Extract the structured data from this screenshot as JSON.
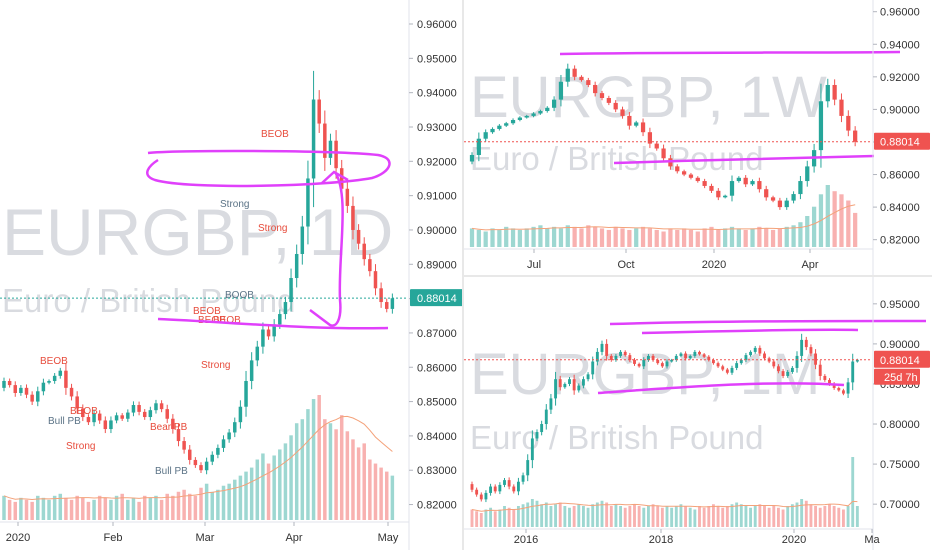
{
  "chart_data": [
    {
      "type": "candlestick",
      "watermark": {
        "ticker": "EURGBP, 1D",
        "description": "Euro / British Pound"
      },
      "x_tick_labels": [
        "2020",
        "Feb",
        "Mar",
        "Apr",
        "May"
      ],
      "y_tick_labels": [
        "0.82000",
        "0.83000",
        "0.84000",
        "0.85000",
        "0.86000",
        "0.87000",
        "0.88000",
        "0.89000",
        "0.90000",
        "0.91000",
        "0.92000",
        "0.93000",
        "0.94000",
        "0.95000",
        "0.96000"
      ],
      "ylim": [
        0.8155,
        0.9635
      ],
      "last_price": "0.88014",
      "colors": {
        "up": "#26a69a",
        "down": "#ef5350",
        "drawing": "#e040fb",
        "volume_ma": "#f4a27a"
      },
      "annotations": [
        "BEOB",
        "Bull PB",
        "BEOB",
        "Strong",
        "Bear PB",
        "Bull PB",
        "BEOB",
        "BEOB",
        "BEOB",
        "Strong",
        "BOOB",
        "Strong",
        "BEOB"
      ],
      "candles": {
        "o": [
          0.854,
          0.856,
          0.8548,
          0.8525,
          0.854,
          0.852,
          0.85,
          0.853,
          0.8555,
          0.856,
          0.8575,
          0.859,
          0.854,
          0.8515,
          0.848,
          0.8455,
          0.844,
          0.8465,
          0.8445,
          0.842,
          0.8445,
          0.846,
          0.845,
          0.8468,
          0.849,
          0.847,
          0.8455,
          0.8475,
          0.8495,
          0.8478,
          0.845,
          0.842,
          0.8385,
          0.836,
          0.833,
          0.8315,
          0.83,
          0.8325,
          0.8345,
          0.8365,
          0.839,
          0.841,
          0.844,
          0.8485,
          0.856,
          0.862,
          0.866,
          0.871,
          0.869,
          0.8725,
          0.8755,
          0.879,
          0.886,
          0.893,
          0.901,
          0.915,
          0.938,
          0.931,
          0.921,
          0.926,
          0.918,
          0.912,
          0.907,
          0.9,
          0.896,
          0.8915,
          0.888,
          0.883,
          0.879,
          0.877
        ],
        "c": [
          0.856,
          0.8548,
          0.8525,
          0.854,
          0.852,
          0.85,
          0.853,
          0.8555,
          0.856,
          0.8575,
          0.859,
          0.854,
          0.8515,
          0.848,
          0.8455,
          0.844,
          0.8465,
          0.8445,
          0.842,
          0.8445,
          0.846,
          0.845,
          0.8468,
          0.849,
          0.847,
          0.8455,
          0.8475,
          0.8495,
          0.8478,
          0.845,
          0.842,
          0.8385,
          0.836,
          0.833,
          0.8315,
          0.83,
          0.8325,
          0.8345,
          0.8365,
          0.839,
          0.841,
          0.844,
          0.8485,
          0.856,
          0.862,
          0.866,
          0.871,
          0.869,
          0.8725,
          0.8755,
          0.879,
          0.886,
          0.893,
          0.901,
          0.915,
          0.938,
          0.931,
          0.921,
          0.926,
          0.918,
          0.912,
          0.907,
          0.9,
          0.896,
          0.8915,
          0.888,
          0.883,
          0.879,
          0.877,
          0.8801
        ],
        "v": [
          12,
          10,
          9,
          11,
          10,
          9,
          12,
          11,
          10,
          12,
          13,
          11,
          10,
          12,
          11,
          9,
          10,
          12,
          11,
          10,
          12,
          13,
          10,
          11,
          9,
          12,
          11,
          12,
          10,
          13,
          12,
          14,
          15,
          13,
          12,
          16,
          18,
          14,
          15,
          17,
          18,
          20,
          22,
          24,
          26,
          30,
          33,
          28,
          32,
          35,
          38,
          42,
          48,
          50,
          55,
          60,
          62,
          50,
          48,
          45,
          52,
          44,
          40,
          36,
          38,
          30,
          28,
          26,
          24,
          22
        ]
      }
    },
    {
      "type": "candlestick",
      "watermark": {
        "ticker": "EURGBP, 1W",
        "description": "Euro / British Pound"
      },
      "x_tick_labels": [
        "Jul",
        "Oct",
        "2020",
        "Apr"
      ],
      "y_tick_labels": [
        "0.82000",
        "0.84000",
        "0.86000",
        "0.88000",
        "0.90000",
        "0.92000",
        "0.94000",
        "0.96000"
      ],
      "ylim": [
        0.8155,
        0.9635
      ],
      "last_price": "0.88014",
      "candles": {
        "o": [
          0.868,
          0.872,
          0.882,
          0.886,
          0.888,
          0.89,
          0.8915,
          0.8935,
          0.895,
          0.896,
          0.8975,
          0.899,
          0.901,
          0.906,
          0.917,
          0.925,
          0.92,
          0.918,
          0.915,
          0.91,
          0.907,
          0.904,
          0.9,
          0.896,
          0.89,
          0.892,
          0.886,
          0.879,
          0.876,
          0.87,
          0.865,
          0.862,
          0.86,
          0.858,
          0.856,
          0.853,
          0.85,
          0.846,
          0.847,
          0.856,
          0.858,
          0.854,
          0.856,
          0.851,
          0.846,
          0.844,
          0.84,
          0.844,
          0.848,
          0.856,
          0.865,
          0.875,
          0.905,
          0.915,
          0.906,
          0.896,
          0.887
        ],
        "c": [
          0.872,
          0.882,
          0.886,
          0.888,
          0.89,
          0.8915,
          0.8935,
          0.895,
          0.896,
          0.8975,
          0.899,
          0.901,
          0.906,
          0.917,
          0.925,
          0.92,
          0.918,
          0.915,
          0.91,
          0.907,
          0.904,
          0.9,
          0.896,
          0.89,
          0.892,
          0.886,
          0.879,
          0.876,
          0.87,
          0.865,
          0.862,
          0.86,
          0.858,
          0.856,
          0.853,
          0.85,
          0.846,
          0.847,
          0.856,
          0.858,
          0.854,
          0.856,
          0.851,
          0.846,
          0.844,
          0.84,
          0.844,
          0.848,
          0.856,
          0.865,
          0.875,
          0.905,
          0.915,
          0.906,
          0.896,
          0.887,
          0.8801
        ],
        "v": [
          12,
          11,
          10,
          12,
          11,
          13,
          12,
          11,
          12,
          13,
          14,
          12,
          13,
          12,
          14,
          13,
          12,
          14,
          13,
          12,
          11,
          13,
          12,
          11,
          12,
          13,
          12,
          11,
          10,
          12,
          11,
          12,
          11,
          10,
          12,
          13,
          11,
          12,
          13,
          12,
          11,
          12,
          13,
          12,
          11,
          12,
          13,
          14,
          16,
          20,
          26,
          34,
          40,
          36,
          34,
          30,
          22
        ]
      }
    },
    {
      "type": "candlestick",
      "watermark": {
        "ticker": "EURGBP, 1M",
        "description": "Euro / British Pound"
      },
      "x_tick_labels": [
        "2016",
        "2018",
        "2020",
        "Ma"
      ],
      "y_tick_labels": [
        "0.70000",
        "0.75000",
        "0.80000",
        "0.85000",
        "0.90000",
        "0.95000"
      ],
      "ylim": [
        0.6715,
        0.9735
      ],
      "last_price": "0.88014",
      "countdown": "25d 7h",
      "candles": {
        "o": [
          0.725,
          0.718,
          0.712,
          0.706,
          0.714,
          0.722,
          0.716,
          0.724,
          0.73,
          0.722,
          0.716,
          0.728,
          0.736,
          0.755,
          0.782,
          0.79,
          0.8,
          0.818,
          0.832,
          0.856,
          0.846,
          0.85,
          0.856,
          0.842,
          0.848,
          0.856,
          0.862,
          0.878,
          0.89,
          0.9,
          0.885,
          0.88,
          0.885,
          0.89,
          0.886,
          0.88,
          0.875,
          0.872,
          0.88,
          0.885,
          0.88,
          0.876,
          0.872,
          0.878,
          0.88,
          0.885,
          0.888,
          0.882,
          0.885,
          0.89,
          0.887,
          0.884,
          0.88,
          0.876,
          0.872,
          0.868,
          0.864,
          0.87,
          0.876,
          0.88,
          0.886,
          0.89,
          0.895,
          0.888,
          0.882,
          0.878,
          0.872,
          0.866,
          0.86,
          0.865,
          0.87,
          0.885,
          0.905,
          0.896,
          0.888,
          0.874,
          0.86,
          0.855,
          0.85,
          0.845,
          0.842,
          0.838,
          0.852,
          0.878
        ],
        "c": [
          0.718,
          0.712,
          0.706,
          0.714,
          0.722,
          0.716,
          0.724,
          0.73,
          0.722,
          0.716,
          0.728,
          0.736,
          0.755,
          0.782,
          0.79,
          0.8,
          0.818,
          0.832,
          0.856,
          0.846,
          0.85,
          0.856,
          0.842,
          0.848,
          0.856,
          0.862,
          0.878,
          0.89,
          0.9,
          0.885,
          0.88,
          0.885,
          0.89,
          0.886,
          0.88,
          0.875,
          0.872,
          0.88,
          0.885,
          0.88,
          0.876,
          0.872,
          0.878,
          0.88,
          0.885,
          0.888,
          0.882,
          0.885,
          0.89,
          0.887,
          0.884,
          0.88,
          0.876,
          0.872,
          0.868,
          0.864,
          0.87,
          0.876,
          0.88,
          0.886,
          0.89,
          0.895,
          0.888,
          0.882,
          0.878,
          0.872,
          0.866,
          0.86,
          0.865,
          0.87,
          0.885,
          0.905,
          0.896,
          0.888,
          0.874,
          0.86,
          0.855,
          0.85,
          0.845,
          0.842,
          0.838,
          0.852,
          0.878,
          0.8801
        ],
        "v": [
          10,
          9,
          8,
          10,
          11,
          9,
          10,
          12,
          11,
          10,
          12,
          13,
          14,
          16,
          15,
          13,
          14,
          12,
          13,
          14,
          12,
          11,
          12,
          13,
          12,
          11,
          13,
          14,
          15,
          14,
          12,
          13,
          12,
          11,
          12,
          13,
          12,
          11,
          12,
          13,
          12,
          11,
          12,
          11,
          12,
          13,
          12,
          11,
          10,
          12,
          11,
          12,
          13,
          12,
          11,
          12,
          13,
          14,
          13,
          12,
          11,
          12,
          13,
          12,
          11,
          12,
          11,
          10,
          12,
          13,
          14,
          16,
          15,
          13,
          12,
          11,
          12,
          13,
          12,
          11,
          10,
          12,
          40,
          12
        ]
      }
    }
  ]
}
